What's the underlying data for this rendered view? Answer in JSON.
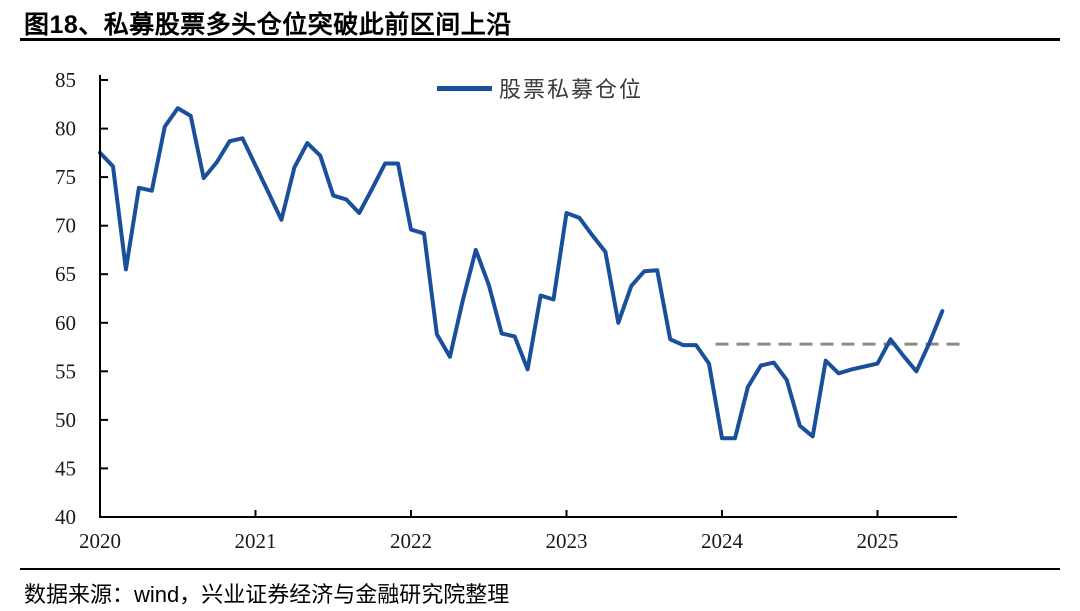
{
  "header": {
    "title": "图18、私募股票多头仓位突破此前区间上沿"
  },
  "footer": {
    "source": "数据来源：wind，兴业证券经济与金融研究院整理"
  },
  "chart_data": {
    "type": "line",
    "legend": [
      {
        "label": "股票私募仓位",
        "color": "#1a4f9c"
      }
    ],
    "legend_position": "top-center",
    "grid": false,
    "ylim": [
      40,
      85
    ],
    "yticks": [
      40,
      45,
      50,
      55,
      60,
      65,
      70,
      75,
      80,
      85
    ],
    "x_tick_labels": [
      "2020",
      "2021",
      "2022",
      "2023",
      "2024",
      "2025"
    ],
    "x_monthly_start": "2020-01",
    "x_monthly_end": "2025-06",
    "axis_color": "#000000",
    "tick_label_color": "#1a1a1a",
    "series": [
      {
        "name": "股票私募仓位",
        "color": "#1a4f9c",
        "values": [
          77.5,
          76.1,
          65.5,
          73.9,
          73.6,
          80.2,
          82.1,
          81.3,
          74.9,
          76.5,
          78.7,
          79.0,
          76.2,
          73.4,
          70.6,
          76.0,
          78.5,
          77.2,
          73.1,
          72.7,
          71.3,
          73.8,
          76.4,
          76.4,
          69.6,
          69.2,
          58.8,
          56.5,
          62.3,
          67.5,
          63.9,
          58.9,
          58.6,
          55.2,
          62.8,
          62.4,
          71.3,
          70.8,
          69.0,
          67.3,
          60.0,
          63.8,
          65.3,
          65.4,
          58.3,
          57.7,
          57.7,
          55.8,
          48.1,
          48.1,
          53.4,
          55.6,
          55.9,
          54.1,
          49.4,
          48.3,
          56.1,
          54.8,
          55.2,
          55.5,
          55.8,
          58.3,
          56.6,
          55.0,
          57.9,
          61.2
        ]
      }
    ],
    "reference_line": {
      "value": 57.8,
      "style": "dashed",
      "color": "#8c8c8c",
      "x_start_month_index": 47.5,
      "x_end_month_index": 66.6
    }
  }
}
